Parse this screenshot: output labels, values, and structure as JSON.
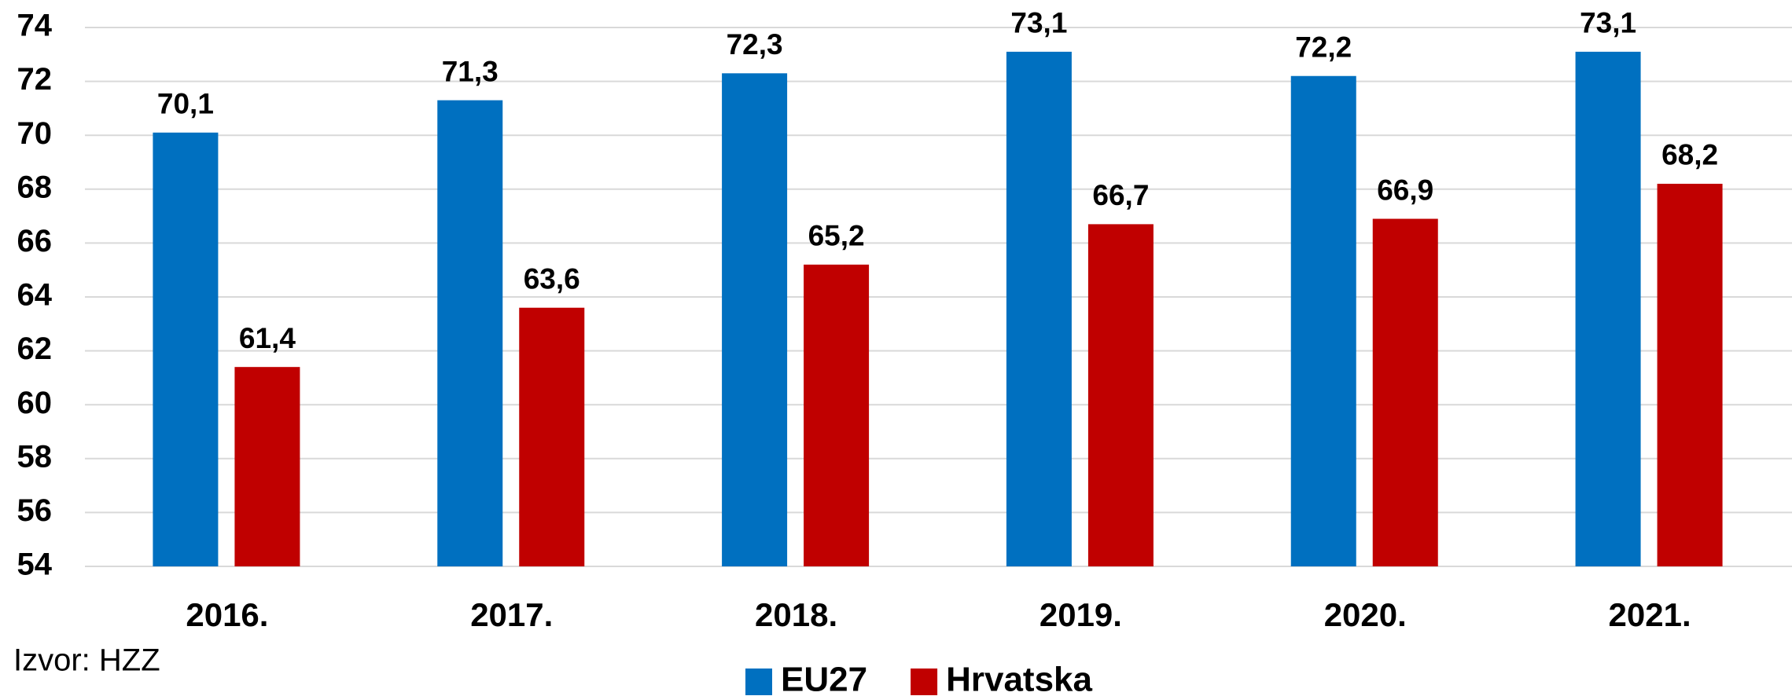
{
  "chart_data": {
    "type": "bar",
    "categories": [
      "2016.",
      "2017.",
      "2018.",
      "2019.",
      "2020.",
      "2021."
    ],
    "series": [
      {
        "name": "EU27",
        "color": "#0070c0",
        "values": [
          70.1,
          71.3,
          72.3,
          73.1,
          72.2,
          73.1
        ],
        "value_labels": [
          "70,1",
          "71,3",
          "72,3",
          "73,1",
          "72,2",
          "73,1"
        ]
      },
      {
        "name": "Hrvatska",
        "color": "#c00000",
        "values": [
          61.4,
          63.6,
          65.2,
          66.7,
          66.9,
          68.2
        ],
        "value_labels": [
          "61,4",
          "63,6",
          "65,2",
          "66,7",
          "66,9",
          "68,2"
        ]
      }
    ],
    "ylim": [
      54,
      74
    ],
    "yticks": [
      54,
      56,
      58,
      60,
      62,
      64,
      66,
      68,
      70,
      72,
      74
    ],
    "grid": true,
    "legend": "bottom",
    "note": "Izvor: HZZ"
  }
}
